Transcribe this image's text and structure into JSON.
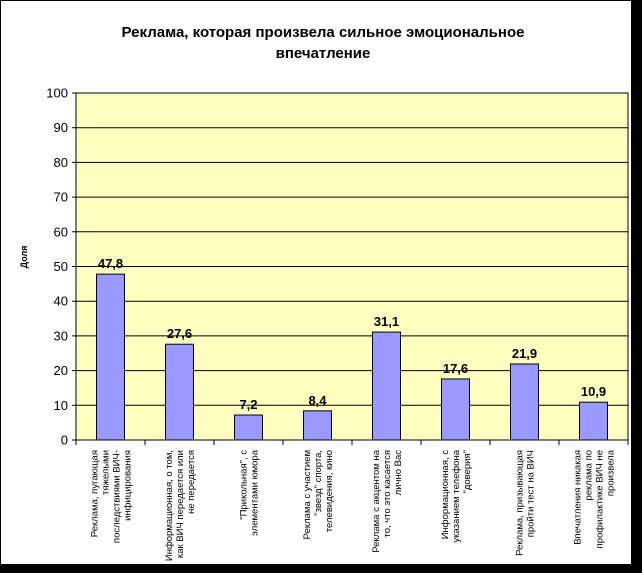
{
  "chart_data": {
    "type": "bar",
    "title": [
      "Реклама, которая произвела сильное эмоциональное",
      "впечатление"
    ],
    "ylabel": "Доля",
    "ylim": [
      0,
      100
    ],
    "yticks": [
      0,
      10,
      20,
      30,
      40,
      50,
      60,
      70,
      80,
      90,
      100
    ],
    "grid": true,
    "plot_background": "#FFFFC0",
    "bar_color": "#9999FF",
    "categories": [
      [
        "Реклама, пугающая",
        "тяжелыми",
        "последствиями ВИЧ-",
        "инфицирования"
      ],
      [
        "Информационная, о том,",
        "как ВИЧ передается или",
        "не передается"
      ],
      [
        "\"Прикольная\", с",
        "элементами юмора"
      ],
      [
        "Реклама с участием",
        "\"звезд\" спорта,",
        "телевидения, кино"
      ],
      [
        "Реклама с акцентом на",
        "то, что это касается",
        "лично Вас"
      ],
      [
        "Информационная, с",
        "указанием телефона",
        "\"доверия\""
      ],
      [
        "Реклама, призывающая",
        "пройти тест на ВИЧ"
      ],
      [
        "Впечатления никакая",
        "реклама по",
        "профилактике ВИЧ не",
        "произвела"
      ]
    ],
    "values": [
      47.8,
      27.6,
      7.2,
      8.4,
      31.1,
      17.6,
      21.9,
      10.9
    ],
    "value_labels": [
      "47,8",
      "27,6",
      "7,2",
      "8,4",
      "31,1",
      "17,6",
      "21,9",
      "10,9"
    ]
  }
}
